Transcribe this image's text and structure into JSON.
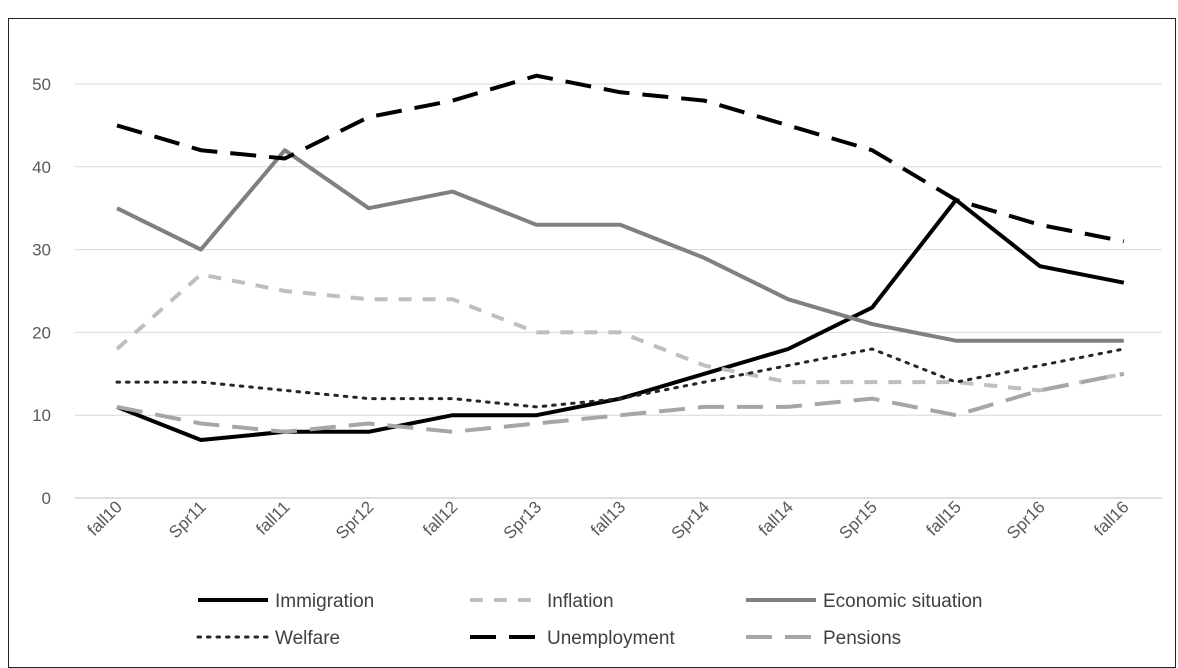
{
  "chart_data": {
    "type": "line",
    "categories": [
      "fall10",
      "Spr11",
      "fall11",
      "Spr12",
      "fall12",
      "Spr13",
      "fall13",
      "Spr14",
      "fall14",
      "Spr15",
      "fall15",
      "Spr16",
      "fall16"
    ],
    "ylim": [
      0,
      50
    ],
    "yticks": [
      "0",
      "10",
      "20",
      "30",
      "40",
      "50"
    ],
    "grid": "horizontal",
    "legend_position": "bottom",
    "series": [
      {
        "name": "Immigration",
        "values": [
          11,
          7,
          8,
          8,
          10,
          10,
          12,
          15,
          18,
          23,
          36,
          28,
          26
        ],
        "color": "#000000",
        "style": "solid"
      },
      {
        "name": "Inflation",
        "values": [
          18,
          27,
          25,
          24,
          24,
          20,
          20,
          16,
          14,
          14,
          14,
          13,
          15
        ],
        "color": "#bfbfbf",
        "style": "dash"
      },
      {
        "name": "Economic situation",
        "values": [
          35,
          30,
          42,
          35,
          37,
          33,
          33,
          29,
          24,
          21,
          19,
          19,
          19
        ],
        "color": "#808080",
        "style": "solid"
      },
      {
        "name": "Welfare",
        "values": [
          14,
          14,
          13,
          12,
          12,
          11,
          12,
          14,
          16,
          18,
          14,
          16,
          18
        ],
        "color": "#262626",
        "style": "dot"
      },
      {
        "name": "Unemployment",
        "values": [
          45,
          42,
          41,
          46,
          48,
          51,
          49,
          48,
          45,
          42,
          36,
          33,
          31
        ],
        "color": "#000000",
        "style": "longdash"
      },
      {
        "name": "Pensions",
        "values": [
          11,
          9,
          8,
          9,
          8,
          9,
          10,
          11,
          11,
          12,
          10,
          13,
          15
        ],
        "color": "#a6a6a6",
        "style": "longdash"
      }
    ]
  }
}
